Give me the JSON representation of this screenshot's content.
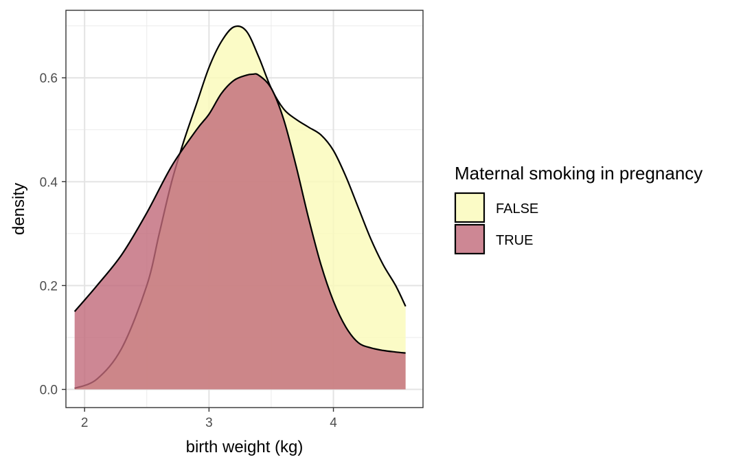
{
  "chart_data": {
    "type": "area",
    "subtype": "density",
    "xlabel": "birth weight (kg)",
    "ylabel": "density",
    "xlim": [
      1.85,
      4.72
    ],
    "ylim": [
      -0.035,
      0.73
    ],
    "x_ticks": [
      2,
      3,
      4
    ],
    "x_tick_labels": [
      "2",
      "3",
      "4"
    ],
    "y_ticks": [
      0.0,
      0.2,
      0.4,
      0.6
    ],
    "y_tick_labels": [
      "0.0",
      "0.2",
      "0.4",
      "0.6"
    ],
    "grid": true,
    "legend": {
      "title": "Maternal smoking in pregnancy",
      "position": "right"
    },
    "series": [
      {
        "name": "FALSE",
        "color": "#FAFAB8",
        "x": [
          1.92,
          2.1,
          2.3,
          2.5,
          2.6,
          2.7,
          2.8,
          2.9,
          3.0,
          3.1,
          3.2,
          3.3,
          3.4,
          3.5,
          3.6,
          3.7,
          3.8,
          3.9,
          4.0,
          4.1,
          4.2,
          4.3,
          4.4,
          4.5,
          4.58
        ],
        "values": [
          0.002,
          0.02,
          0.08,
          0.2,
          0.3,
          0.4,
          0.48,
          0.55,
          0.62,
          0.67,
          0.698,
          0.69,
          0.64,
          0.58,
          0.54,
          0.52,
          0.505,
          0.49,
          0.46,
          0.41,
          0.35,
          0.29,
          0.24,
          0.2,
          0.16
        ]
      },
      {
        "name": "TRUE",
        "color": "#C16979",
        "x": [
          1.92,
          2.1,
          2.3,
          2.5,
          2.7,
          2.9,
          3.0,
          3.1,
          3.2,
          3.3,
          3.35,
          3.4,
          3.5,
          3.6,
          3.7,
          3.8,
          3.9,
          4.0,
          4.1,
          4.2,
          4.3,
          4.4,
          4.5,
          4.58
        ],
        "values": [
          0.15,
          0.2,
          0.26,
          0.34,
          0.43,
          0.5,
          0.53,
          0.57,
          0.595,
          0.605,
          0.607,
          0.605,
          0.58,
          0.52,
          0.43,
          0.33,
          0.24,
          0.17,
          0.12,
          0.09,
          0.08,
          0.075,
          0.072,
          0.07
        ]
      }
    ]
  }
}
